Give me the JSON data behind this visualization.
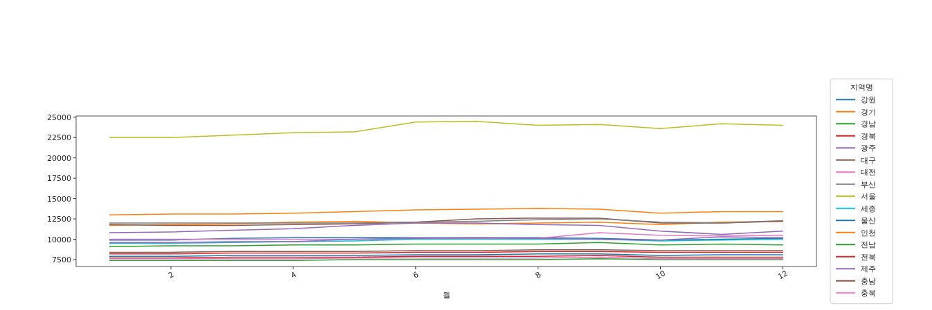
{
  "chart_data": {
    "type": "line",
    "xlabel": "월",
    "legend_title": "지역명",
    "legend": "right",
    "grid": false,
    "x": [
      1,
      2,
      3,
      4,
      5,
      6,
      7,
      8,
      9,
      10,
      11,
      12
    ],
    "xlim": [
      0.45,
      12.55
    ],
    "xticks": [
      2,
      4,
      6,
      8,
      10,
      12
    ],
    "ylim": [
      6650,
      25150
    ],
    "yticks": [
      7500,
      10000,
      12500,
      15000,
      17500,
      20000,
      22500,
      25000
    ],
    "series": [
      {
        "name": "강원",
        "color": "#1f77b4",
        "values": [
          9900,
          9900,
          10100,
          10200,
          10200,
          10200,
          10200,
          10200,
          10100,
          9900,
          10000,
          10100
        ]
      },
      {
        "name": "경기",
        "color": "#ff7f0e",
        "values": [
          11700,
          11800,
          11900,
          12100,
          12200,
          12000,
          11900,
          12000,
          12100,
          11800,
          12100,
          12200
        ]
      },
      {
        "name": "경남",
        "color": "#2ca02c",
        "values": [
          9100,
          9200,
          9200,
          9300,
          9300,
          9400,
          9400,
          9400,
          9600,
          9300,
          9400,
          9300
        ]
      },
      {
        "name": "경북",
        "color": "#d62728",
        "values": [
          8200,
          8200,
          8300,
          8300,
          8300,
          8400,
          8400,
          8500,
          8500,
          8400,
          8400,
          8400
        ]
      },
      {
        "name": "광주",
        "color": "#9467bd",
        "values": [
          10800,
          10900,
          11100,
          11300,
          11700,
          12000,
          12000,
          11800,
          11700,
          11000,
          10600,
          11000
        ]
      },
      {
        "name": "대구",
        "color": "#8c564b",
        "values": [
          11800,
          11700,
          11700,
          11800,
          11900,
          12100,
          12500,
          12600,
          12600,
          12000,
          12000,
          12200
        ]
      },
      {
        "name": "대전",
        "color": "#e377c2",
        "values": [
          10000,
          10000,
          10000,
          10000,
          10000,
          10100,
          10100,
          10100,
          10800,
          10500,
          10400,
          10500
        ]
      },
      {
        "name": "부산",
        "color": "#7f7f7f",
        "values": [
          12000,
          12000,
          12000,
          12000,
          12000,
          12100,
          12200,
          12400,
          12500,
          12100,
          12000,
          12300
        ]
      },
      {
        "name": "서울",
        "color": "#bcbd22",
        "values": [
          22500,
          22500,
          22800,
          23100,
          23200,
          24400,
          24500,
          24000,
          24100,
          23600,
          24200,
          24000
        ]
      },
      {
        "name": "세종",
        "color": "#17becf",
        "values": [
          9500,
          9500,
          9600,
          9700,
          9800,
          10000,
          10000,
          10000,
          10000,
          9800,
          9900,
          10000
        ]
      },
      {
        "name": "울산",
        "color": "#1f77b4",
        "values": [
          7900,
          7900,
          8000,
          8000,
          8000,
          8100,
          8100,
          8200,
          8200,
          8000,
          8100,
          8100
        ]
      },
      {
        "name": "인천",
        "color": "#ff7f0e",
        "values": [
          13000,
          13100,
          13100,
          13200,
          13400,
          13600,
          13700,
          13800,
          13700,
          13200,
          13400,
          13400
        ]
      },
      {
        "name": "전남",
        "color": "#2ca02c",
        "values": [
          7400,
          7400,
          7400,
          7400,
          7500,
          7500,
          7500,
          7500,
          7600,
          7500,
          7500,
          7500
        ]
      },
      {
        "name": "전북",
        "color": "#d62728",
        "values": [
          7700,
          7700,
          7800,
          7800,
          7800,
          7900,
          7900,
          7900,
          8000,
          7800,
          7800,
          7800
        ]
      },
      {
        "name": "제주",
        "color": "#9467bd",
        "values": [
          9600,
          9600,
          9700,
          9700,
          10000,
          10100,
          10200,
          10100,
          10000,
          9900,
          10300,
          10200
        ]
      },
      {
        "name": "충남",
        "color": "#8c564b",
        "values": [
          8400,
          8400,
          8500,
          8500,
          8500,
          8600,
          8600,
          8700,
          8700,
          8600,
          8600,
          8600
        ]
      },
      {
        "name": "충북",
        "color": "#e377c2",
        "values": [
          7600,
          7600,
          7600,
          7600,
          7700,
          7700,
          7700,
          7700,
          7800,
          7600,
          7600,
          7600
        ]
      }
    ]
  }
}
